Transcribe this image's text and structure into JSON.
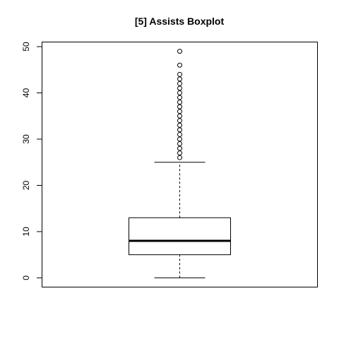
{
  "chart_data": {
    "type": "boxplot",
    "title": "[5] Assists Boxplot",
    "xlabel": "",
    "ylabel": "",
    "ylim": [
      -2,
      51
    ],
    "yticks": [
      0,
      10,
      20,
      30,
      40,
      50
    ],
    "box": {
      "min": 0,
      "q1": 5,
      "median": 8,
      "q3": 13,
      "whisker_high": 25
    },
    "outliers": [
      26,
      27,
      28,
      29,
      30,
      31,
      32,
      33,
      34,
      35,
      36,
      37,
      38,
      39,
      40,
      41,
      42,
      43,
      44,
      46,
      49
    ],
    "grid": false,
    "colors": {
      "stroke": "#000000",
      "background": "#ffffff"
    }
  }
}
